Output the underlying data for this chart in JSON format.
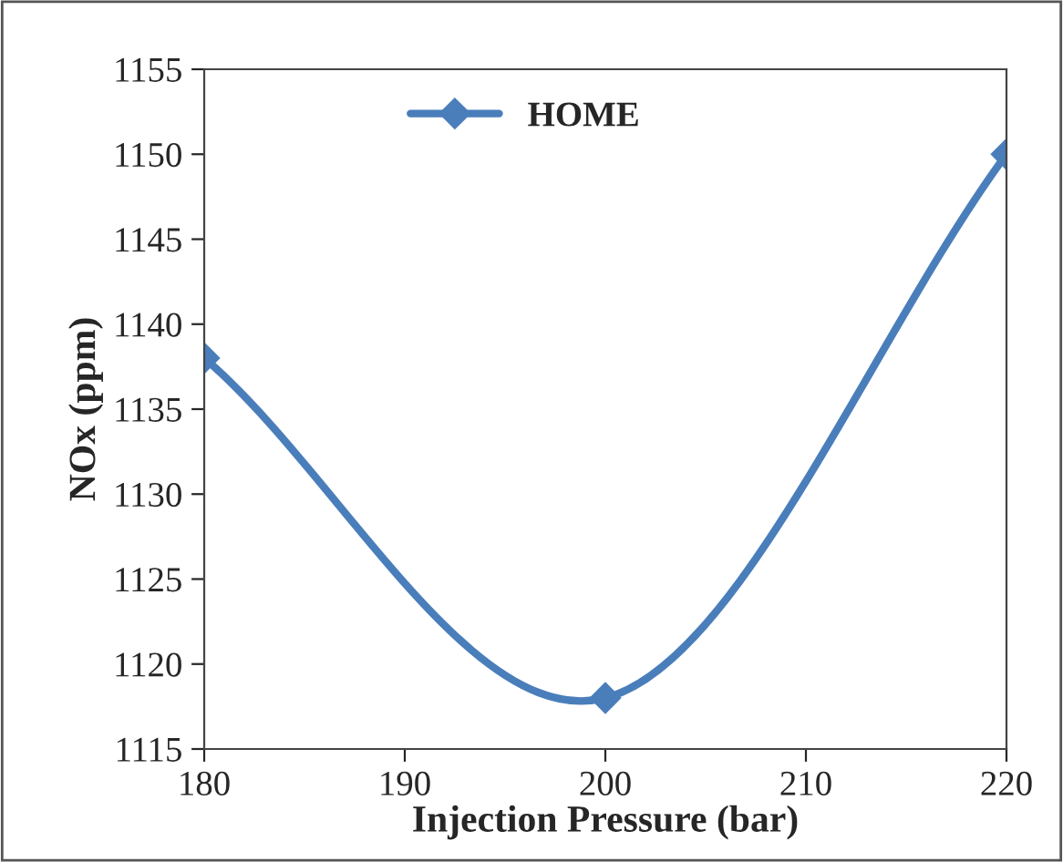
{
  "chart_data": {
    "type": "line",
    "xlabel": "Injection Pressure (bar)",
    "ylabel": "NOx (ppm)",
    "x": [
      180,
      200,
      220
    ],
    "series": [
      {
        "name": "HOME",
        "color": "#4a7ebb",
        "values": [
          1138,
          1118,
          1150
        ]
      }
    ],
    "xlim": [
      180,
      220
    ],
    "xticks": [
      180,
      190,
      200,
      210,
      220
    ],
    "ylim": [
      1115,
      1155
    ],
    "yticks": [
      1115,
      1120,
      1125,
      1130,
      1135,
      1140,
      1145,
      1150,
      1155
    ],
    "marker": "diamond",
    "line_style": "solid",
    "legend": "top",
    "grid": false
  }
}
